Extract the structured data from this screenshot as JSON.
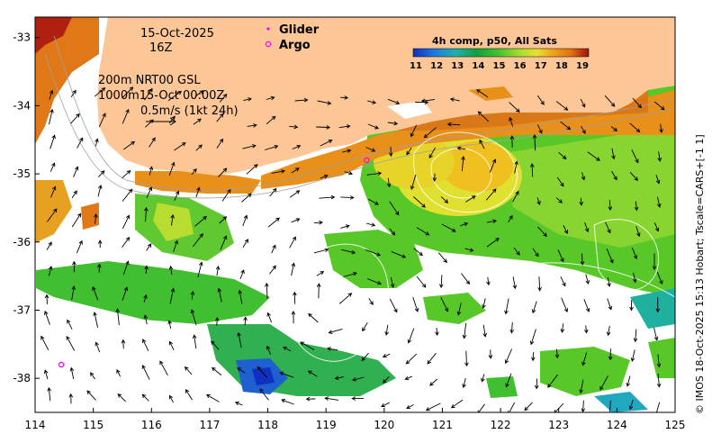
{
  "header": {
    "date_label": "15-Oct-2025",
    "time_label": "16Z"
  },
  "info": {
    "line1": "200m  NRT00 GSL",
    "line2": "1000m15-Oct 00:00Z",
    "scale_label": "0.5m/s (1kt 24h)"
  },
  "legend": {
    "glider_label": "Glider",
    "argo_label": "Argo",
    "glider_color": "#ff00ff",
    "argo_color": "#ff00ff"
  },
  "colorbar": {
    "title": "4h comp, p50, All Sats",
    "ticks": [
      "11",
      "12",
      "13",
      "14",
      "15",
      "16",
      "17",
      "18",
      "19"
    ],
    "colors": [
      "#1030c0",
      "#1e78e0",
      "#20b0b0",
      "#10a040",
      "#40c030",
      "#a0dc30",
      "#e8e030",
      "#f0a020",
      "#e07010",
      "#c02010",
      "#901000"
    ]
  },
  "axes": {
    "x_ticks": [
      "114",
      "115",
      "116",
      "117",
      "118",
      "119",
      "120",
      "121",
      "122",
      "123",
      "124",
      "125"
    ],
    "y_ticks": [
      "-33",
      "-34",
      "-35",
      "-36",
      "-37",
      "-38"
    ]
  },
  "credit": "© IMOS 18-Oct-2025 15:13 Hobart; Tscale=CARS+[-1 1]",
  "colors": {
    "land": "#fcc697",
    "ocean_warm": "#e8901a",
    "ocean_mid": "#58d028",
    "ocean_yellow": "#d8e430",
    "ocean_cool": "#10a048"
  },
  "markers": {
    "argo": [
      {
        "lon": 119.7,
        "lat": -34.8
      },
      {
        "lon": 114.45,
        "lat": -37.8
      }
    ]
  }
}
